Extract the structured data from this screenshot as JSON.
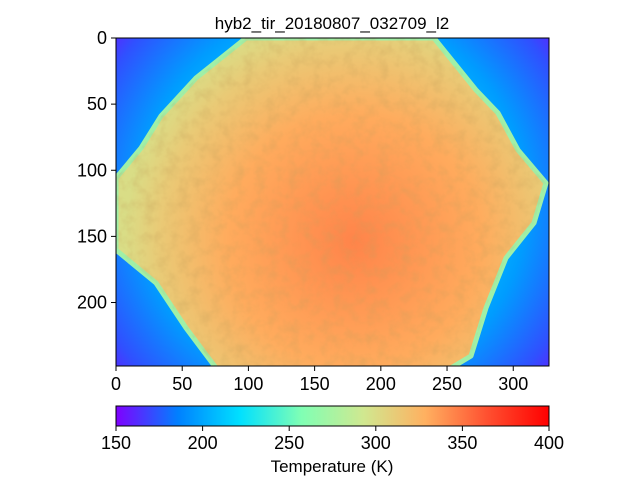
{
  "chart_data": {
    "type": "heatmap",
    "title": "hyb2_tir_20180807_032709_l2",
    "xlabel": "",
    "ylabel": "",
    "x_range": [
      0,
      327
    ],
    "y_range": [
      0,
      248
    ],
    "x_ticks": [
      0,
      50,
      100,
      150,
      200,
      250,
      300
    ],
    "y_ticks": [
      0,
      50,
      100,
      150,
      200
    ],
    "y_inverted": true,
    "grid": false,
    "colormap": "rainbow",
    "colorbar": {
      "orientation": "horizontal",
      "placement": "bottom",
      "label": "Temperature (K)",
      "range": [
        150,
        400
      ],
      "ticks": [
        150,
        200,
        250,
        300,
        350,
        400
      ],
      "colors": [
        "#8000ff",
        "#0080ff",
        "#00e0ff",
        "#80ffb4",
        "#d0e890",
        "#ffb060",
        "#ff5030",
        "#ff0000"
      ]
    },
    "background_temperature_range": [
      150,
      230
    ],
    "body_temperature_range": [
      300,
      345
    ],
    "body_outline": [
      [
        130,
        0
      ],
      [
        318,
        0
      ],
      [
        360,
        52
      ],
      [
        382,
        75
      ],
      [
        402,
        112
      ],
      [
        430,
        145
      ],
      [
        418,
        185
      ],
      [
        390,
        220
      ],
      [
        370,
        270
      ],
      [
        355,
        318
      ],
      [
        310,
        345
      ],
      [
        240,
        355
      ],
      [
        140,
        352
      ],
      [
        100,
        330
      ],
      [
        70,
        290
      ],
      [
        40,
        245
      ],
      [
        0,
        212
      ],
      [
        0,
        140
      ],
      [
        25,
        110
      ],
      [
        45,
        78
      ],
      [
        80,
        40
      ]
    ]
  }
}
